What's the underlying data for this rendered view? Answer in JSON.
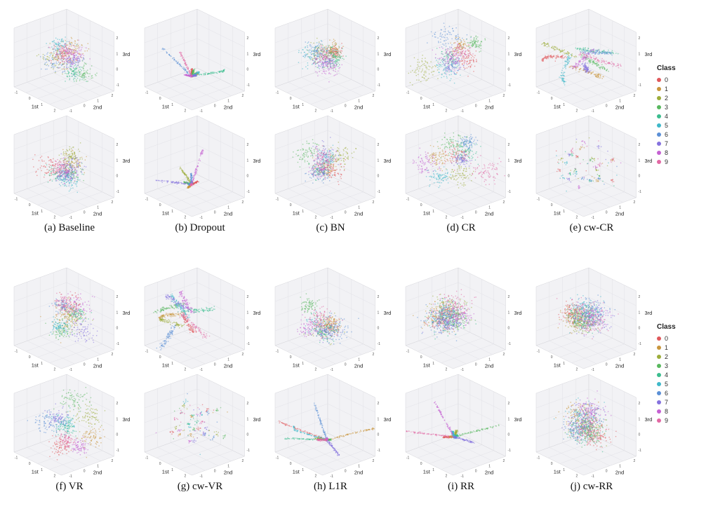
{
  "page": {
    "background": "#ffffff"
  },
  "legend": {
    "title": "Class",
    "classes": [
      {
        "label": "0",
        "color": "#e0585b"
      },
      {
        "label": "1",
        "color": "#c9963d"
      },
      {
        "label": "2",
        "color": "#9cad3a"
      },
      {
        "label": "3",
        "color": "#58b85e"
      },
      {
        "label": "4",
        "color": "#3bbd8e"
      },
      {
        "label": "5",
        "color": "#3fb8c9"
      },
      {
        "label": "6",
        "color": "#5b8fd6"
      },
      {
        "label": "7",
        "color": "#8572de"
      },
      {
        "label": "8",
        "color": "#c561d2"
      },
      {
        "label": "9",
        "color": "#e268a4"
      }
    ]
  },
  "chart_data": {
    "type": "scatter",
    "projection": "3d",
    "description": "Grid of 20 3D scatter plots of learned feature embeddings (two views per method), colored by digit class 0-9",
    "axis_labels": {
      "x": "1st",
      "y": "2nd",
      "z": "3rd"
    },
    "tick_labels_approx": {
      "x": [
        "-1",
        "0",
        "1",
        "2"
      ],
      "y": [
        "-1",
        "0",
        "1",
        "2"
      ],
      "z": [
        "-1",
        "0",
        "1",
        "2"
      ]
    },
    "classes": [
      "0",
      "1",
      "2",
      "3",
      "4",
      "5",
      "6",
      "7",
      "8",
      "9"
    ],
    "class_colors": [
      "#e0585b",
      "#c9963d",
      "#9cad3a",
      "#58b85e",
      "#3bbd8e",
      "#3fb8c9",
      "#5b8fd6",
      "#8572de",
      "#c561d2",
      "#e268a4"
    ],
    "groups": [
      {
        "panels": [
          {
            "caption": "(a) Baseline",
            "views": [
              {
                "pattern": "blobs-overlap",
                "seed": 11
              },
              {
                "pattern": "blobs-overlap",
                "seed": 12
              }
            ]
          },
          {
            "caption": "(b) Dropout",
            "views": [
              {
                "pattern": "spikes",
                "seed": 21
              },
              {
                "pattern": "spikes",
                "seed": 22
              }
            ]
          },
          {
            "caption": "(c) BN",
            "views": [
              {
                "pattern": "blobs-overlap",
                "seed": 31
              },
              {
                "pattern": "blobs-separate",
                "seed": 32
              }
            ]
          },
          {
            "caption": "(d) CR",
            "views": [
              {
                "pattern": "blobs-separate",
                "seed": 41
              },
              {
                "pattern": "blobs-separate",
                "seed": 42
              }
            ]
          },
          {
            "caption": "(e) cw-CR",
            "views": [
              {
                "pattern": "streaks",
                "seed": 51
              },
              {
                "pattern": "sparse",
                "seed": 52
              }
            ]
          }
        ]
      },
      {
        "panels": [
          {
            "caption": "(f) VR",
            "views": [
              {
                "pattern": "blobs-overlap",
                "seed": 61
              },
              {
                "pattern": "blobs-separate",
                "seed": 62
              }
            ]
          },
          {
            "caption": "(g) cw-VR",
            "views": [
              {
                "pattern": "streaks",
                "seed": 71
              },
              {
                "pattern": "sparse",
                "seed": 72
              }
            ]
          },
          {
            "caption": "(h) L1R",
            "views": [
              {
                "pattern": "blobs-overlap",
                "seed": 81
              },
              {
                "pattern": "spikes",
                "seed": 82
              }
            ]
          },
          {
            "caption": "(i) RR",
            "views": [
              {
                "pattern": "dense",
                "seed": 91
              },
              {
                "pattern": "spikes",
                "seed": 92
              }
            ]
          },
          {
            "caption": "(j) cw-RR",
            "views": [
              {
                "pattern": "dense",
                "seed": 101
              },
              {
                "pattern": "dense",
                "seed": 102
              }
            ]
          }
        ]
      }
    ]
  }
}
